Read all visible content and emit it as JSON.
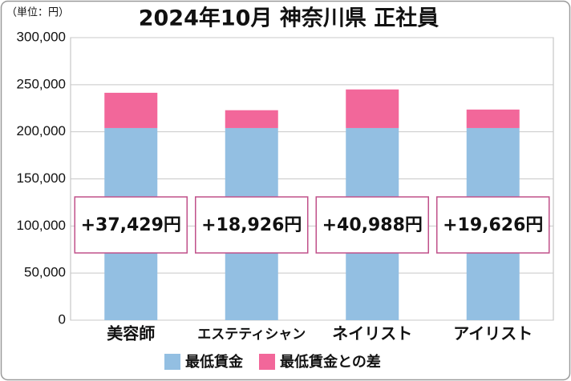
{
  "chart_data": {
    "type": "stacked_bar",
    "title": "2024年10月 神奈川県 正社員",
    "unit_label": "（単位：円）",
    "categories": [
      "美容師",
      "エステティシャン",
      "ネイリスト",
      "アイリスト"
    ],
    "series": [
      {
        "name": "最低賃金",
        "color": "#93bfe2",
        "values": [
          204000,
          204000,
          204000,
          204000
        ]
      },
      {
        "name": "最低賃金との差",
        "color": "#f2679a",
        "values": [
          37429,
          18926,
          40988,
          19626
        ],
        "value_labels": [
          "+37,429円",
          "+18,926円",
          "+40,988円",
          "+19,626円"
        ]
      }
    ],
    "ylim": [
      0,
      300000
    ],
    "yticks": [
      0,
      {
        "value": 50000,
        "label": "50,000"
      },
      {
        "value": 100000,
        "label": "100,000"
      },
      {
        "value": 150000,
        "label": "150,000"
      },
      {
        "value": 200000,
        "label": "200,000"
      },
      {
        "value": 250000,
        "label": "250,000"
      },
      {
        "value": 300000,
        "label": "300,000"
      }
    ],
    "grid": true
  }
}
